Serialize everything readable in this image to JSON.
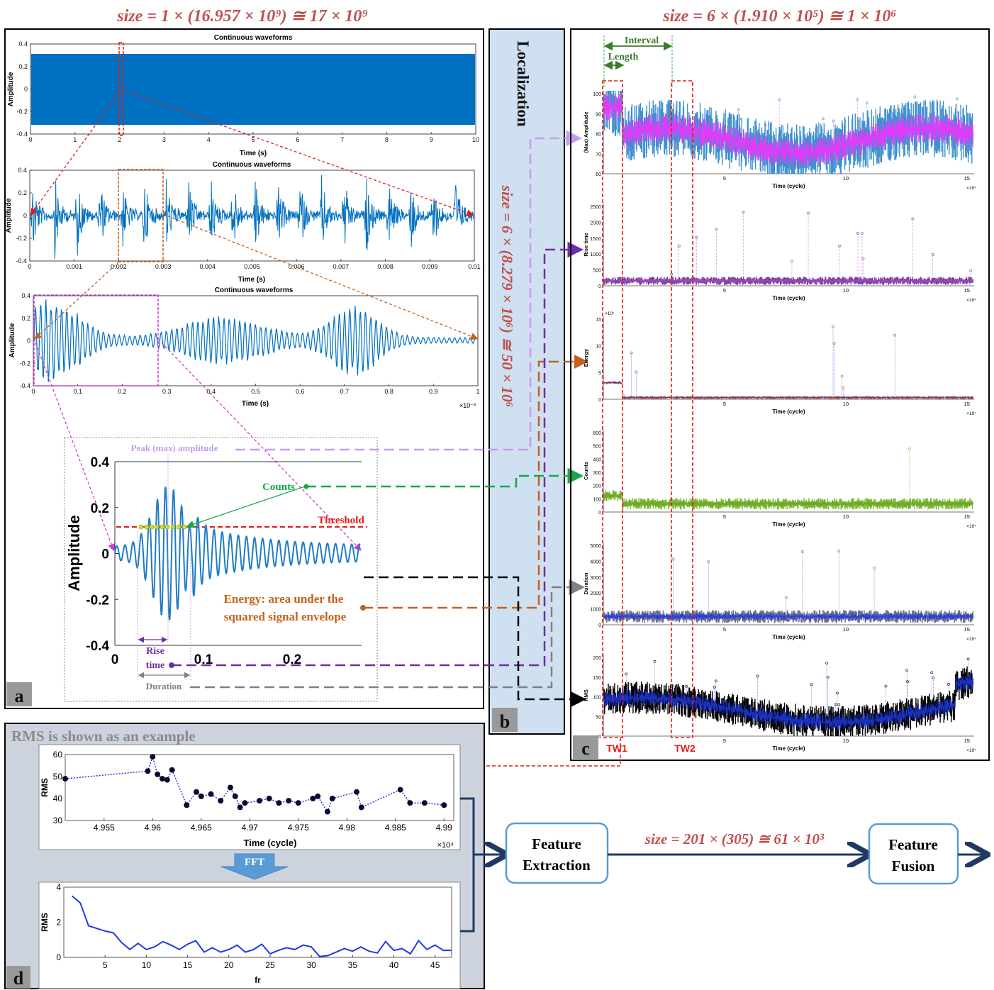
{
  "headers": {
    "size_a": "size = 1 × (16.957 × 10⁹) ≅ 17 × 10⁹",
    "size_c": "size = 6 × (1.910 × 10⁵) ≅ 1 × 10⁶",
    "size_b": "size = 6 × (8.279 × 10⁶) ≅ 50 × 10⁶",
    "size_flow": "size = 201 × (305) ≅ 61 × 10³"
  },
  "panel_a": {
    "letter": "a",
    "wave1": {
      "title": "Continuous waveforms",
      "xlabel": "Time (s)",
      "ylabel": "Amplitude",
      "xticks": [
        "0",
        "1",
        "2",
        "3",
        "4",
        "5",
        "6",
        "7",
        "8",
        "9",
        "10"
      ],
      "yticks": [
        "0.4",
        "0.2",
        "0",
        "-0.2",
        "-0.4"
      ]
    },
    "wave2": {
      "title": "Continuous waveforms",
      "xlabel": "Time (s)",
      "ylabel": "Amplitude",
      "xticks": [
        "0",
        "0.001",
        "0.002",
        "0.003",
        "0.004",
        "0.005",
        "0.006",
        "0.007",
        "0.008",
        "0.009",
        "0.01"
      ],
      "yticks": [
        "0.4",
        "0.2",
        "0",
        "-0.2",
        "-0.4"
      ]
    },
    "wave3": {
      "title": "Continuous waveforms",
      "xlabel": "Time (s)",
      "ylabel": "Amplitude",
      "xticks": [
        "0",
        "0.1",
        "0.2",
        "0.3",
        "0.4",
        "0.5",
        "0.6",
        "0.7",
        "0.8",
        "0.9",
        "1"
      ],
      "yticks": [
        "0.4",
        "0.2",
        "0",
        "-0.2",
        "-0.4"
      ],
      "exponent": "×10⁻³"
    },
    "zoom": {
      "ylabel": "Amplitude",
      "yticks": [
        "0.4",
        "0.2",
        "0",
        "-0.2",
        "-0.4"
      ],
      "xticks": [
        "0",
        "0.1",
        "0.2"
      ],
      "peak": "Peak (max) amplitude",
      "counts": "Counts",
      "threshold": "Threshold",
      "energy_1": "Energy: area under the",
      "energy_2": "squared signal envelope",
      "rise_1": "Rise",
      "rise_2": "time",
      "duration": "Duration"
    }
  },
  "panel_b": {
    "letter": "b",
    "title": "Localization"
  },
  "panel_c": {
    "letter": "c",
    "interval": "Interval",
    "length": "Length",
    "tw1": "TW1",
    "tw2": "TW2",
    "xlabel": "Time (cycle)",
    "xticks": [
      "0",
      "5",
      "10",
      "15"
    ],
    "exponent": "×10⁴",
    "plots": [
      {
        "ylabel": "(Max) Amplitude",
        "yticks": [
          "100",
          "90",
          "80",
          "70",
          "60"
        ]
      },
      {
        "ylabel": "Rise time",
        "yticks": [
          "2500",
          "2000",
          "1500",
          "1000",
          "500",
          "0"
        ]
      },
      {
        "ylabel": "Energy",
        "yticks": [
          "15",
          "10",
          "5",
          "0"
        ],
        "exponent": "×10⁷"
      },
      {
        "ylabel": "Counts",
        "yticks": [
          "600",
          "500",
          "400",
          "300",
          "200",
          "100",
          "0"
        ]
      },
      {
        "ylabel": "Duration",
        "yticks": [
          "5000",
          "4000",
          "3000",
          "2000",
          "1000",
          "0"
        ]
      },
      {
        "ylabel": "RMS",
        "yticks": [
          "200",
          "150",
          "100",
          "50",
          "0"
        ]
      }
    ]
  },
  "panel_d": {
    "letter": "d",
    "caption": "RMS is shown as an example",
    "fft": "FFT",
    "plot1": {
      "ylabel": "RMS",
      "xlabel": "Time (cycle)",
      "yticks": [
        "60",
        "50",
        "40",
        "30"
      ],
      "xticks": [
        "4.955",
        "4.96",
        "4.965",
        "4.97",
        "4.975",
        "4.98",
        "4.985",
        "4.99"
      ],
      "exponent": "×10⁴"
    },
    "plot2": {
      "ylabel": "RMS",
      "xlabel": "fr",
      "yticks": [
        "4",
        "2",
        "0"
      ],
      "xticks": [
        "5",
        "10",
        "15",
        "20",
        "25",
        "30",
        "35",
        "40",
        "45"
      ]
    }
  },
  "flow": {
    "box1_l1": "Feature",
    "box1_l2": "Extraction",
    "box2_l1": "Feature",
    "box2_l2": "Fusion"
  },
  "chart_data": [
    {
      "type": "line",
      "title": "Continuous waveforms",
      "xlabel": "Time (s)",
      "ylabel": "Amplitude",
      "xlim": [
        0,
        10
      ],
      "ylim": [
        -0.4,
        0.4
      ],
      "note": "dense continuous signal, envelope ±0.3"
    },
    {
      "type": "line",
      "title": "Continuous waveforms",
      "xlabel": "Time (s)",
      "ylabel": "Amplitude",
      "xlim": [
        0,
        0.01
      ],
      "ylim": [
        -0.4,
        0.4
      ]
    },
    {
      "type": "line",
      "title": "Continuous waveforms",
      "xlabel": "Time (s)",
      "ylabel": "Amplitude",
      "xlim": [
        0,
        1
      ],
      "ylim": [
        -0.4,
        0.4
      ]
    },
    {
      "type": "line",
      "xlabel": "Time (cycle)",
      "ylabel": "RMS",
      "xlim": [
        4.951,
        4.991
      ],
      "ylim": [
        30,
        60
      ],
      "x": [
        4.951,
        4.9595,
        4.96,
        4.9605,
        4.961,
        4.9615,
        4.962,
        4.9635,
        4.9645,
        4.965,
        4.966,
        4.967,
        4.968,
        4.9685,
        4.969,
        4.9695,
        4.971,
        4.972,
        4.973,
        4.974,
        4.975,
        4.9765,
        4.977,
        4.978,
        4.9785,
        4.981,
        4.9815,
        4.9855,
        4.9865,
        4.988,
        4.99
      ],
      "y": [
        49,
        52.5,
        59,
        51,
        49,
        48.5,
        53,
        37,
        43,
        41,
        42,
        39,
        45,
        41,
        36,
        38,
        39,
        40,
        38,
        39,
        38,
        40,
        41,
        34,
        40,
        43,
        36,
        44,
        38,
        38,
        37
      ]
    },
    {
      "type": "line",
      "xlabel": "fr",
      "ylabel": "RMS",
      "xlim": [
        0,
        47
      ],
      "ylim": [
        0,
        4
      ],
      "x": [
        1,
        2,
        3,
        4,
        5,
        6,
        7,
        8,
        9,
        10,
        11,
        12,
        13,
        14,
        15,
        16,
        17,
        18,
        19,
        20,
        21,
        22,
        23,
        24,
        25,
        26,
        27,
        28,
        29,
        30,
        31,
        32,
        33,
        34,
        35,
        36,
        37,
        38,
        39,
        40,
        41,
        42,
        43,
        44,
        45,
        46,
        47
      ],
      "y": [
        3.5,
        3.1,
        1.8,
        1.65,
        1.5,
        1.4,
        0.85,
        0.45,
        0.8,
        0.45,
        0.6,
        0.9,
        0.7,
        0.45,
        0.75,
        0.95,
        0.3,
        0.55,
        0.3,
        0.45,
        0.7,
        0.3,
        0.45,
        0.75,
        0.2,
        0.4,
        0.55,
        0.45,
        0.7,
        0.6,
        0.05,
        0.1,
        0.3,
        0.5,
        0.35,
        0.6,
        0.35,
        0.25,
        0.9,
        0.4,
        0.5,
        0.2,
        0.95,
        0.45,
        0.7,
        0.4,
        0.4
      ]
    }
  ],
  "colors": {
    "blue": "#0070c0",
    "red": "#e21b1b",
    "orange": "#c4611d",
    "green": "#14a848",
    "purple": "#6f2da8",
    "magenta": "#e040e0",
    "lilac": "#c79cf0",
    "grey": "#808080",
    "navy": "#1f3864",
    "flowbox": "#5b9bd5",
    "paneld_bg": "#ccd3dd",
    "panelb_bg": "#cfe0f1"
  }
}
